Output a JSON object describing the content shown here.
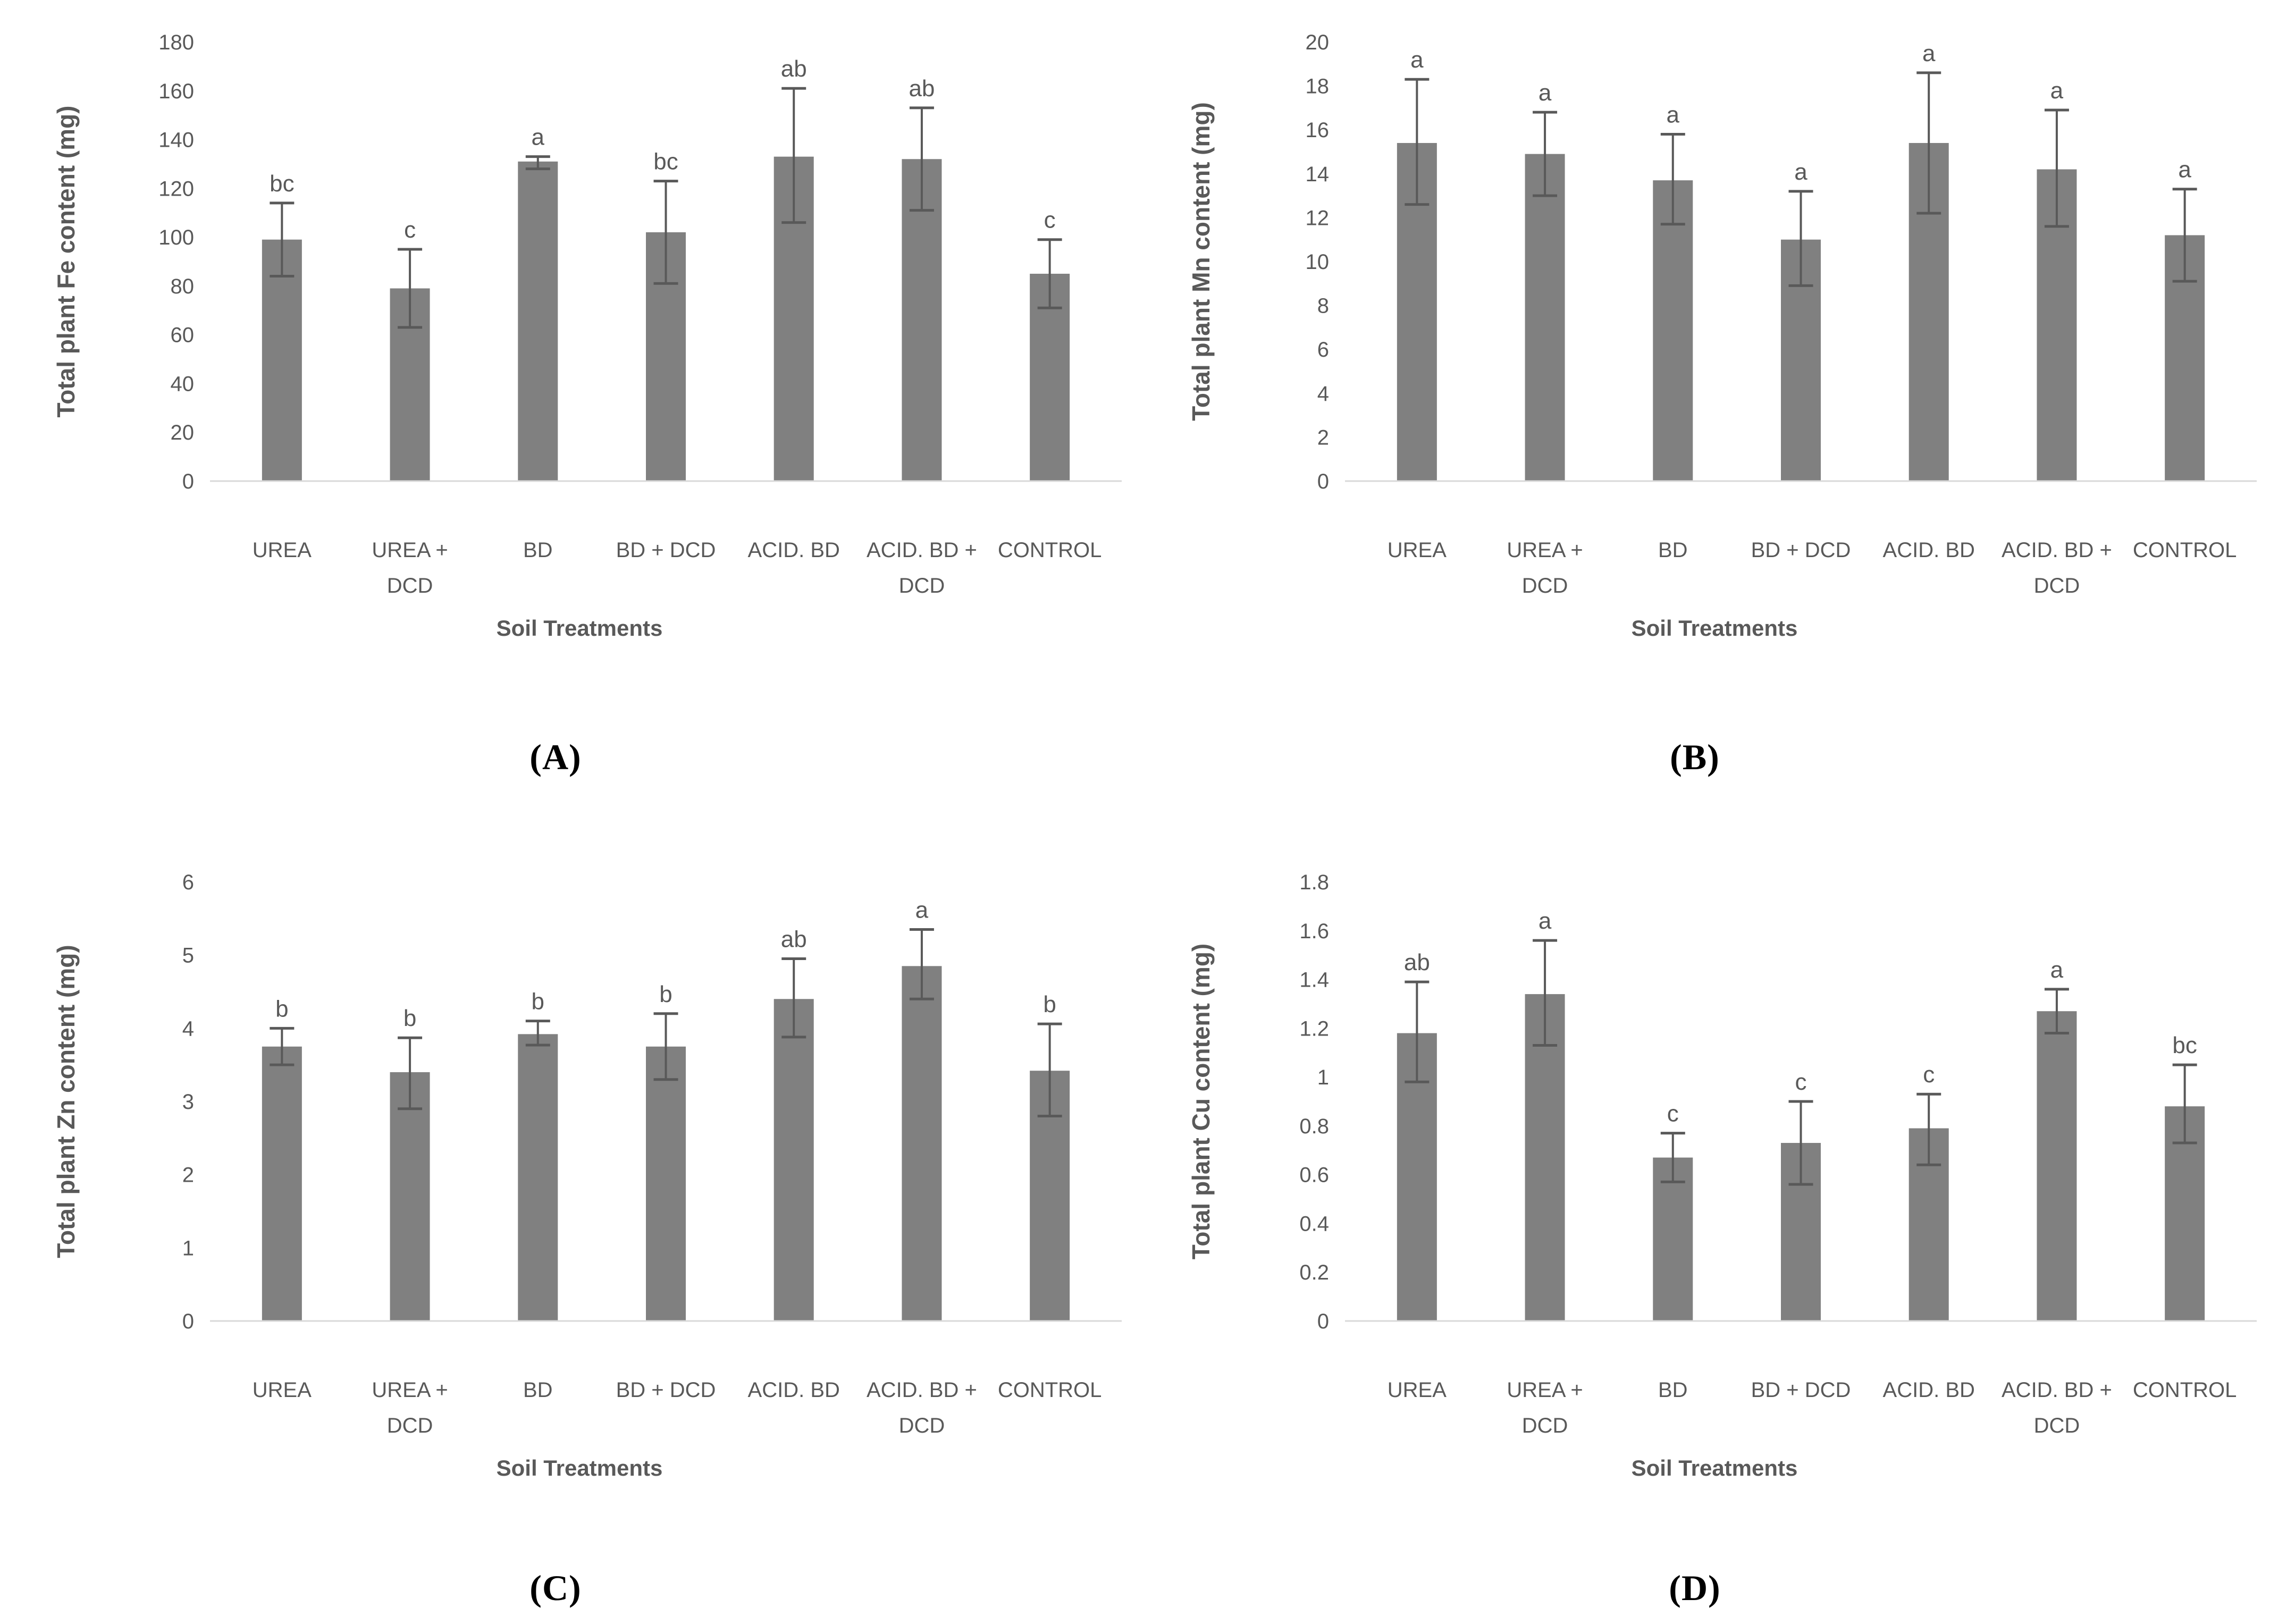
{
  "figure": {
    "x_axis_title": "Soil Treatments",
    "panel_labels": [
      "(A)",
      "(B)",
      "(C)",
      "(D)"
    ],
    "categories": [
      "UREA",
      "UREA + DCD",
      "BD",
      "BD + DCD",
      "ACID. BD",
      "ACID. BD + DCD",
      "CONTROL"
    ],
    "category_label_lines": [
      [
        "UREA"
      ],
      [
        "UREA +",
        "DCD"
      ],
      [
        "BD"
      ],
      [
        "BD + DCD"
      ],
      [
        "ACID. BD"
      ],
      [
        "ACID. BD +",
        "DCD"
      ],
      [
        "CONTROL"
      ]
    ]
  },
  "colors": {
    "bar": "#808080",
    "error_bar": "#595959",
    "text": "#595959",
    "axis_line": "#d9d9d9",
    "panel_letter": "#000000"
  },
  "chart_data": [
    {
      "id": "A",
      "type": "bar",
      "ylabel": "Total plant Fe content (mg)",
      "xlabel": "Soil Treatments",
      "ylim": [
        0,
        180
      ],
      "ytick_step": 20,
      "ytick_labels": [
        "0",
        "20",
        "40",
        "60",
        "80",
        "100",
        "120",
        "140",
        "160",
        "180"
      ],
      "grid": false,
      "legend": null,
      "categories": [
        "UREA",
        "UREA + DCD",
        "BD",
        "BD + DCD",
        "ACID. BD",
        "ACID. BD + DCD",
        "CONTROL"
      ],
      "values": [
        99,
        79,
        131,
        102,
        133,
        132,
        85
      ],
      "error_low": [
        84,
        63,
        128,
        81,
        106,
        111,
        71
      ],
      "error_high": [
        114,
        95,
        133,
        123,
        161,
        153,
        99
      ],
      "sig_letters": [
        "bc",
        "c",
        "a",
        "bc",
        "ab",
        "ab",
        "c"
      ]
    },
    {
      "id": "B",
      "type": "bar",
      "ylabel": "Total plant Mn content (mg)",
      "xlabel": "Soil Treatments",
      "ylim": [
        0,
        20
      ],
      "ytick_step": 2,
      "ytick_labels": [
        "0",
        "2",
        "4",
        "6",
        "8",
        "10",
        "12",
        "14",
        "16",
        "18",
        "20"
      ],
      "grid": false,
      "legend": null,
      "categories": [
        "UREA",
        "UREA + DCD",
        "BD",
        "BD + DCD",
        "ACID. BD",
        "ACID. BD + DCD",
        "CONTROL"
      ],
      "values": [
        15.4,
        14.9,
        13.7,
        11.0,
        15.4,
        14.2,
        11.2
      ],
      "error_low": [
        12.6,
        13.0,
        11.7,
        8.9,
        12.2,
        11.6,
        9.1
      ],
      "error_high": [
        18.3,
        16.8,
        15.8,
        13.2,
        18.6,
        16.9,
        13.3
      ],
      "sig_letters": [
        "a",
        "a",
        "a",
        "a",
        "a",
        "a",
        "a"
      ]
    },
    {
      "id": "C",
      "type": "bar",
      "ylabel": "Total plant Zn content (mg)",
      "xlabel": "Soil Treatments",
      "ylim": [
        0,
        6
      ],
      "ytick_step": 1,
      "ytick_labels": [
        "0",
        "1",
        "2",
        "3",
        "4",
        "5",
        "6"
      ],
      "grid": false,
      "legend": null,
      "categories": [
        "UREA",
        "UREA + DCD",
        "BD",
        "BD + DCD",
        "ACID. BD",
        "ACID. BD + DCD",
        "CONTROL"
      ],
      "values": [
        3.75,
        3.4,
        3.92,
        3.75,
        4.4,
        4.85,
        3.42
      ],
      "error_low": [
        3.5,
        2.9,
        3.77,
        3.3,
        3.88,
        4.4,
        2.8
      ],
      "error_high": [
        4.0,
        3.87,
        4.1,
        4.2,
        4.95,
        5.35,
        4.06
      ],
      "sig_letters": [
        "b",
        "b",
        "b",
        "b",
        "ab",
        "a",
        "b"
      ]
    },
    {
      "id": "D",
      "type": "bar",
      "ylabel": "Total plant Cu content (mg)",
      "xlabel": "Soil Treatments",
      "ylim": [
        0,
        1.8
      ],
      "ytick_step": 0.2,
      "ytick_labels": [
        "0",
        "0.2",
        "0.4",
        "0.6",
        "0.8",
        "1",
        "1.2",
        "1.4",
        "1.6",
        "1.8"
      ],
      "grid": false,
      "legend": null,
      "categories": [
        "UREA",
        "UREA + DCD",
        "BD",
        "BD + DCD",
        "ACID. BD",
        "ACID. BD + DCD",
        "CONTROL"
      ],
      "values": [
        1.18,
        1.34,
        0.67,
        0.73,
        0.79,
        1.27,
        0.88
      ],
      "error_low": [
        0.98,
        1.13,
        0.57,
        0.56,
        0.64,
        1.18,
        0.73
      ],
      "error_high": [
        1.39,
        1.56,
        0.77,
        0.9,
        0.93,
        1.36,
        1.05
      ],
      "sig_letters": [
        "ab",
        "a",
        "c",
        "c",
        "c",
        "a",
        "bc"
      ]
    }
  ]
}
